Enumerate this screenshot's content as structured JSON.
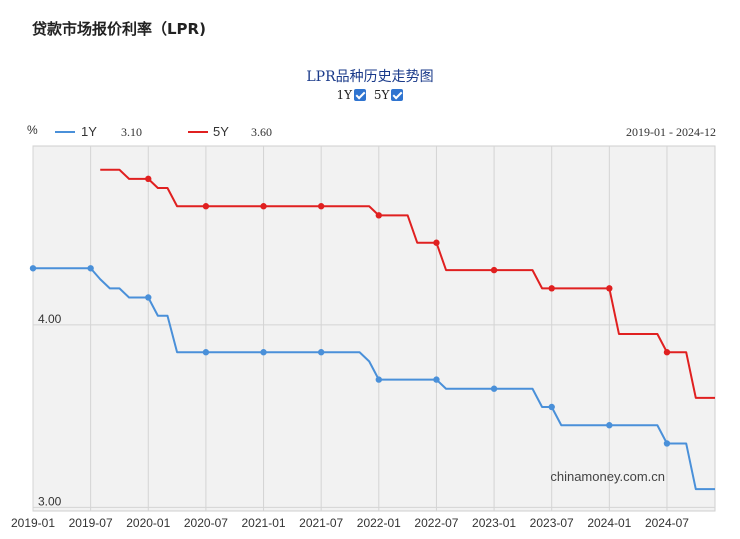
{
  "page_title": "贷款市场报价利率（LPR)",
  "chart_title": "LPR品种历史走势图",
  "toggles": [
    {
      "label": "1Y",
      "checked": true
    },
    {
      "label": "5Y",
      "checked": true
    }
  ],
  "legend": {
    "unit": "%",
    "items": [
      {
        "name": "1Y",
        "value": "3.10",
        "color": "#4a90d9"
      },
      {
        "name": "5Y",
        "value": "3.60",
        "color": "#e02020"
      }
    ],
    "date_range": "2019-01 - 2024-12"
  },
  "watermark": "chinamoney.com.cn",
  "chart_data": {
    "type": "line",
    "title": "LPR品种历史走势图",
    "xlabel": "",
    "ylabel": "%",
    "x_ticks": [
      "2019-01",
      "2019-07",
      "2020-01",
      "2020-07",
      "2021-01",
      "2021-07",
      "2022-01",
      "2022-07",
      "2023-01",
      "2023-07",
      "2024-01",
      "2024-07"
    ],
    "y_ticks": [
      {
        "value": 4.0,
        "label": "4.00"
      },
      {
        "value": 3.0,
        "label": "3.00"
      }
    ],
    "ylim": [
      2.98,
      4.98
    ],
    "xlim": [
      "2019-01",
      "2024-12"
    ],
    "grid": true,
    "series": [
      {
        "name": "1Y",
        "color": "#4a90d9",
        "points": [
          [
            "2019-01",
            4.31
          ],
          [
            "2019-02",
            4.31
          ],
          [
            "2019-03",
            4.31
          ],
          [
            "2019-04",
            4.31
          ],
          [
            "2019-05",
            4.31
          ],
          [
            "2019-06",
            4.31
          ],
          [
            "2019-07",
            4.31
          ],
          [
            "2019-08",
            4.25
          ],
          [
            "2019-09",
            4.2
          ],
          [
            "2019-10",
            4.2
          ],
          [
            "2019-11",
            4.15
          ],
          [
            "2019-12",
            4.15
          ],
          [
            "2020-01",
            4.15
          ],
          [
            "2020-02",
            4.05
          ],
          [
            "2020-03",
            4.05
          ],
          [
            "2020-04",
            3.85
          ],
          [
            "2020-05",
            3.85
          ],
          [
            "2020-06",
            3.85
          ],
          [
            "2020-07",
            3.85
          ],
          [
            "2020-08",
            3.85
          ],
          [
            "2020-09",
            3.85
          ],
          [
            "2020-10",
            3.85
          ],
          [
            "2020-11",
            3.85
          ],
          [
            "2020-12",
            3.85
          ],
          [
            "2021-01",
            3.85
          ],
          [
            "2021-02",
            3.85
          ],
          [
            "2021-03",
            3.85
          ],
          [
            "2021-04",
            3.85
          ],
          [
            "2021-05",
            3.85
          ],
          [
            "2021-06",
            3.85
          ],
          [
            "2021-07",
            3.85
          ],
          [
            "2021-08",
            3.85
          ],
          [
            "2021-09",
            3.85
          ],
          [
            "2021-10",
            3.85
          ],
          [
            "2021-11",
            3.85
          ],
          [
            "2021-12",
            3.8
          ],
          [
            "2022-01",
            3.7
          ],
          [
            "2022-02",
            3.7
          ],
          [
            "2022-03",
            3.7
          ],
          [
            "2022-04",
            3.7
          ],
          [
            "2022-05",
            3.7
          ],
          [
            "2022-06",
            3.7
          ],
          [
            "2022-07",
            3.7
          ],
          [
            "2022-08",
            3.65
          ],
          [
            "2022-09",
            3.65
          ],
          [
            "2022-10",
            3.65
          ],
          [
            "2022-11",
            3.65
          ],
          [
            "2022-12",
            3.65
          ],
          [
            "2023-01",
            3.65
          ],
          [
            "2023-02",
            3.65
          ],
          [
            "2023-03",
            3.65
          ],
          [
            "2023-04",
            3.65
          ],
          [
            "2023-05",
            3.65
          ],
          [
            "2023-06",
            3.55
          ],
          [
            "2023-07",
            3.55
          ],
          [
            "2023-08",
            3.45
          ],
          [
            "2023-09",
            3.45
          ],
          [
            "2023-10",
            3.45
          ],
          [
            "2023-11",
            3.45
          ],
          [
            "2023-12",
            3.45
          ],
          [
            "2024-01",
            3.45
          ],
          [
            "2024-02",
            3.45
          ],
          [
            "2024-03",
            3.45
          ],
          [
            "2024-04",
            3.45
          ],
          [
            "2024-05",
            3.45
          ],
          [
            "2024-06",
            3.45
          ],
          [
            "2024-07",
            3.35
          ],
          [
            "2024-08",
            3.35
          ],
          [
            "2024-09",
            3.35
          ],
          [
            "2024-10",
            3.1
          ],
          [
            "2024-11",
            3.1
          ],
          [
            "2024-12",
            3.1
          ]
        ],
        "marked": [
          "2019-01",
          "2019-07",
          "2020-01",
          "2020-07",
          "2021-01",
          "2021-07",
          "2022-01",
          "2022-07",
          "2023-01",
          "2023-07",
          "2024-01",
          "2024-07"
        ]
      },
      {
        "name": "5Y",
        "color": "#e02020",
        "points": [
          [
            "2019-08",
            4.85
          ],
          [
            "2019-09",
            4.85
          ],
          [
            "2019-10",
            4.85
          ],
          [
            "2019-11",
            4.8
          ],
          [
            "2019-12",
            4.8
          ],
          [
            "2020-01",
            4.8
          ],
          [
            "2020-02",
            4.75
          ],
          [
            "2020-03",
            4.75
          ],
          [
            "2020-04",
            4.65
          ],
          [
            "2020-05",
            4.65
          ],
          [
            "2020-06",
            4.65
          ],
          [
            "2020-07",
            4.65
          ],
          [
            "2020-08",
            4.65
          ],
          [
            "2020-09",
            4.65
          ],
          [
            "2020-10",
            4.65
          ],
          [
            "2020-11",
            4.65
          ],
          [
            "2020-12",
            4.65
          ],
          [
            "2021-01",
            4.65
          ],
          [
            "2021-02",
            4.65
          ],
          [
            "2021-03",
            4.65
          ],
          [
            "2021-04",
            4.65
          ],
          [
            "2021-05",
            4.65
          ],
          [
            "2021-06",
            4.65
          ],
          [
            "2021-07",
            4.65
          ],
          [
            "2021-08",
            4.65
          ],
          [
            "2021-09",
            4.65
          ],
          [
            "2021-10",
            4.65
          ],
          [
            "2021-11",
            4.65
          ],
          [
            "2021-12",
            4.65
          ],
          [
            "2022-01",
            4.6
          ],
          [
            "2022-02",
            4.6
          ],
          [
            "2022-03",
            4.6
          ],
          [
            "2022-04",
            4.6
          ],
          [
            "2022-05",
            4.45
          ],
          [
            "2022-06",
            4.45
          ],
          [
            "2022-07",
            4.45
          ],
          [
            "2022-08",
            4.3
          ],
          [
            "2022-09",
            4.3
          ],
          [
            "2022-10",
            4.3
          ],
          [
            "2022-11",
            4.3
          ],
          [
            "2022-12",
            4.3
          ],
          [
            "2023-01",
            4.3
          ],
          [
            "2023-02",
            4.3
          ],
          [
            "2023-03",
            4.3
          ],
          [
            "2023-04",
            4.3
          ],
          [
            "2023-05",
            4.3
          ],
          [
            "2023-06",
            4.2
          ],
          [
            "2023-07",
            4.2
          ],
          [
            "2023-08",
            4.2
          ],
          [
            "2023-09",
            4.2
          ],
          [
            "2023-10",
            4.2
          ],
          [
            "2023-11",
            4.2
          ],
          [
            "2023-12",
            4.2
          ],
          [
            "2024-01",
            4.2
          ],
          [
            "2024-02",
            3.95
          ],
          [
            "2024-03",
            3.95
          ],
          [
            "2024-04",
            3.95
          ],
          [
            "2024-05",
            3.95
          ],
          [
            "2024-06",
            3.95
          ],
          [
            "2024-07",
            3.85
          ],
          [
            "2024-08",
            3.85
          ],
          [
            "2024-09",
            3.85
          ],
          [
            "2024-10",
            3.6
          ],
          [
            "2024-11",
            3.6
          ],
          [
            "2024-12",
            3.6
          ]
        ],
        "marked": [
          "2020-01",
          "2020-07",
          "2021-01",
          "2021-07",
          "2022-01",
          "2022-07",
          "2023-01",
          "2023-07",
          "2024-01",
          "2024-07"
        ]
      }
    ]
  }
}
